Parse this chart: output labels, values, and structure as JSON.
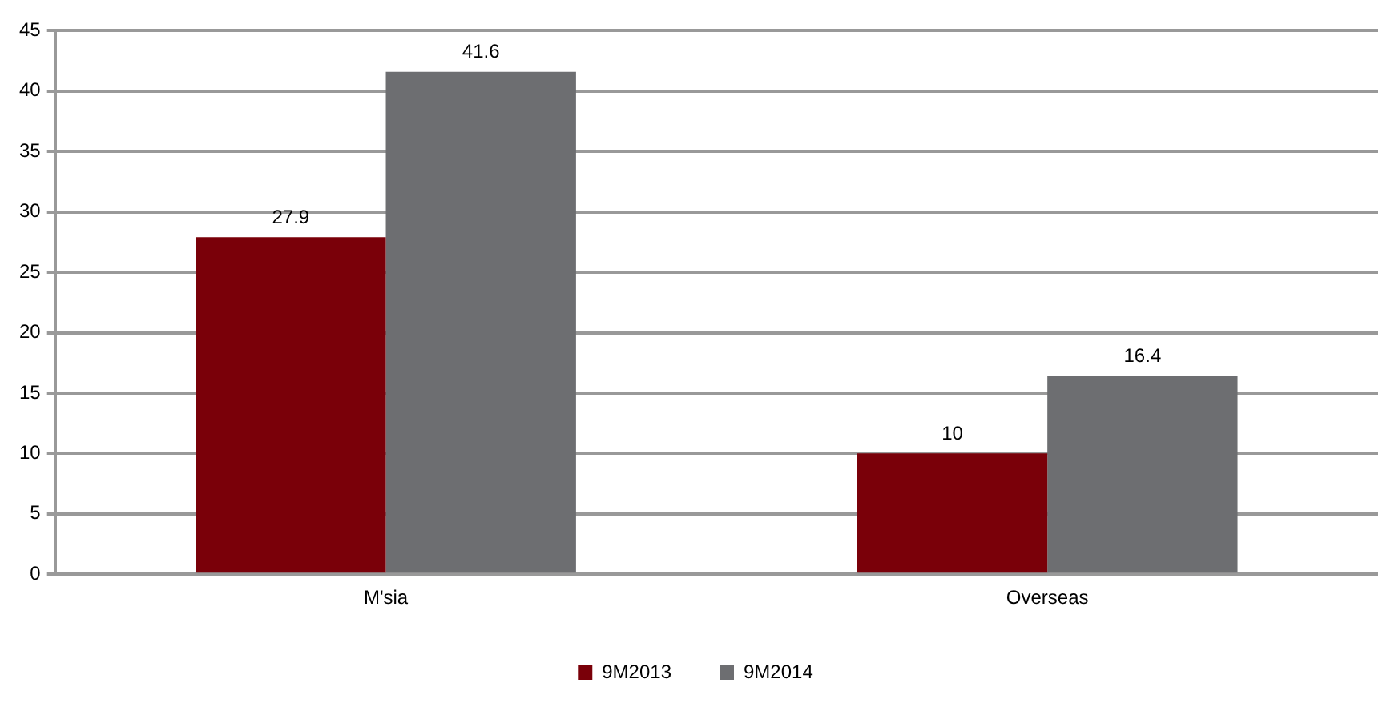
{
  "chart_data": {
    "type": "bar",
    "categories": [
      "M'sia",
      "Overseas"
    ],
    "series": [
      {
        "name": "9M2013",
        "color": "#7a0009",
        "values": [
          27.9,
          10
        ]
      },
      {
        "name": "9M2014",
        "color": "#6d6e71",
        "values": [
          41.6,
          16.4
        ]
      }
    ],
    "ylim": [
      0,
      45
    ],
    "yticks": [
      0,
      5,
      10,
      15,
      20,
      25,
      30,
      35,
      40,
      45
    ],
    "grid": "y",
    "legend": "bottom",
    "data_labels": true
  }
}
